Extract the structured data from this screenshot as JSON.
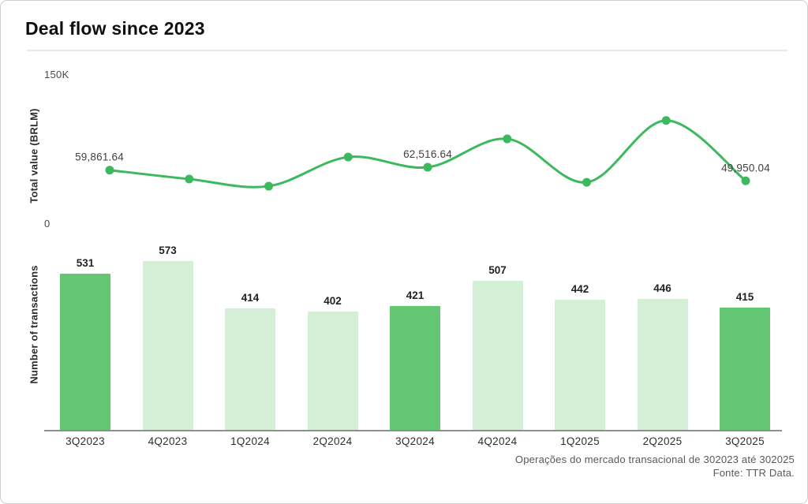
{
  "title": "Deal flow since 2023",
  "footer": {
    "caption": "Operações do mercado transacional de 302023 até 302025",
    "source": "Fonte: TTR Data."
  },
  "colors": {
    "line": "#3cb95f",
    "bar_highlight": "#63c672",
    "bar_normal": "#d3efd5",
    "axis_line": "#8f8f8f"
  },
  "chart_data": [
    {
      "type": "line",
      "name": "total-value",
      "ylabel": "Total value (BRLM)",
      "categories": [
        "3Q2023",
        "4Q2023",
        "1Q2024",
        "2Q2024",
        "3Q2024",
        "4Q2024",
        "1Q2025",
        "2Q2025",
        "3Q2025"
      ],
      "values": [
        59861.64,
        51600,
        45000,
        72000,
        62516.64,
        88800,
        48600,
        105800,
        49950.04
      ],
      "value_precision_note": "only 3Q2023, 3Q2024 and 3Q2025 carry printed labels; other values estimated from pixel positions",
      "point_labels": {
        "0": "59,861.64",
        "4": "62,516.64",
        "8": "49,950.04"
      },
      "yticks": [
        "150K",
        "0"
      ],
      "ylim": [
        0,
        150000
      ],
      "grid": false,
      "legend": false
    },
    {
      "type": "bar",
      "name": "number-of-transactions",
      "ylabel": "Number of transactions",
      "categories": [
        "3Q2023",
        "4Q2023",
        "1Q2024",
        "2Q2024",
        "3Q2024",
        "4Q2024",
        "1Q2025",
        "2Q2025",
        "3Q2025"
      ],
      "values": [
        531,
        573,
        414,
        402,
        421,
        507,
        442,
        446,
        415
      ],
      "highlighted_categories": [
        "3Q2023",
        "3Q2024",
        "3Q2025"
      ],
      "grid": false,
      "legend": false
    }
  ]
}
